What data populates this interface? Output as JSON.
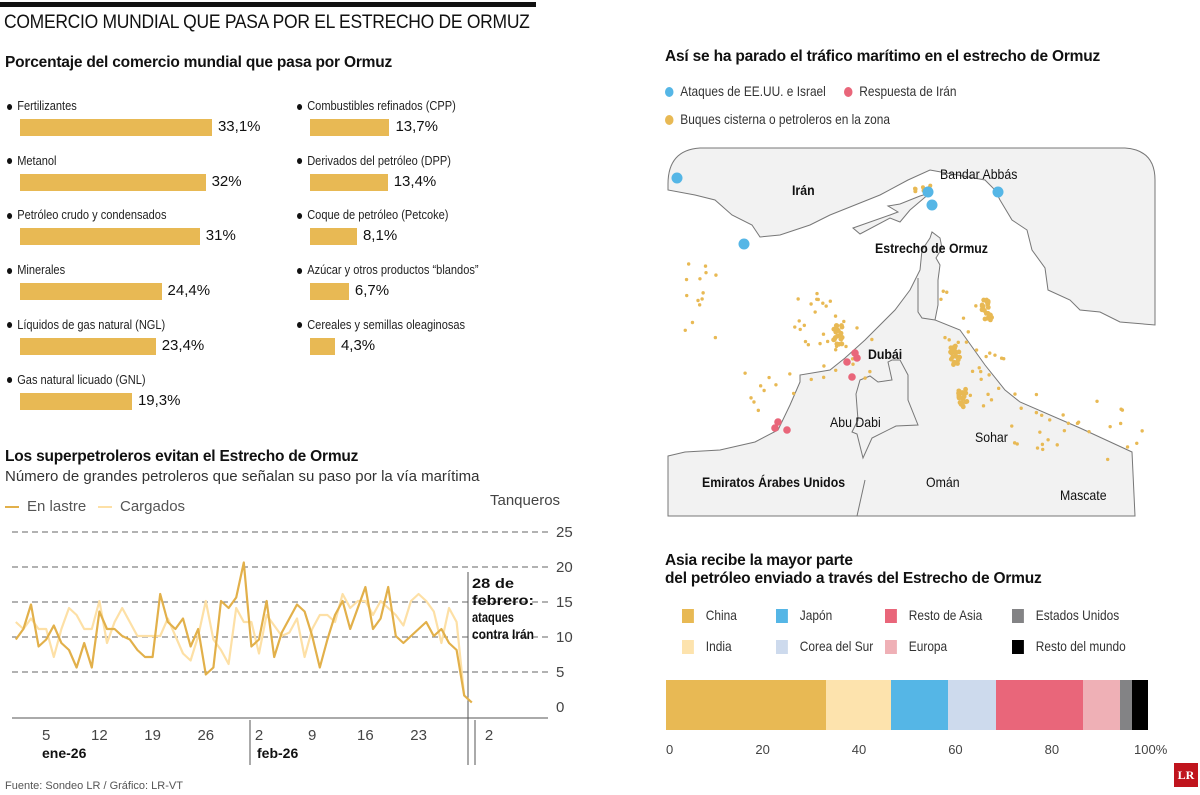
{
  "header": {
    "title": "COMERCIO MUNDIAL QUE PASA POR EL ESTRECHO DE ORMUZ"
  },
  "footer": {
    "source": "Fuente: Sondeo LR / Gráfico: LR-VT",
    "logo": "LR"
  },
  "colors": {
    "gold": "#e8b954",
    "light_gold": "#fde3ad",
    "blue": "#55b6e6",
    "pink": "#e9667a",
    "land": "#f2f2f2",
    "border": "#777777"
  },
  "chart_data": [
    {
      "type": "bar",
      "orientation": "horizontal",
      "title": "Porcentaje del comercio mundial que pasa por Ormuz",
      "categories": [
        "Fertilizantes",
        "Metanol",
        "Petróleo crudo y condensados",
        "Minerales",
        "Líquidos de gas natural (NGL)",
        "Gas natural licuado (GNL)",
        "Combustibles refinados (CPP)",
        "Derivados del petróleo (DPP)",
        "Coque de petróleo (Petcoke)",
        "Azúcar y otros productos “blandos”",
        "Cereales y semillas oleaginosas"
      ],
      "values": [
        33.1,
        32,
        31,
        24.4,
        23.4,
        19.3,
        13.7,
        13.4,
        8.1,
        6.7,
        4.3
      ],
      "labels": [
        "33,1%",
        "32%",
        "31%",
        "24,4%",
        "23,4%",
        "19,3%",
        "13,7%",
        "13,4%",
        "8,1%",
        "6,7%",
        "4,3%"
      ],
      "unit": "%"
    },
    {
      "type": "line",
      "title": "Los superpetroleros evitan el Estrecho de Ormuz",
      "subtitle": "Número de grandes petroleros que señalan su paso por la vía marítima",
      "ylabel": "Tanqueros",
      "ylim": [
        0,
        25
      ],
      "yticks": [
        0,
        5,
        10,
        15,
        20,
        25
      ],
      "grid": true,
      "x_start": "2026-01-01",
      "x_unit": "day",
      "xticks": [
        {
          "day": 5,
          "label": "5"
        },
        {
          "day": 12,
          "label": "12"
        },
        {
          "day": 19,
          "label": "19"
        },
        {
          "day": 26,
          "label": "26"
        },
        {
          "day": 33,
          "label": "2"
        },
        {
          "day": 40,
          "label": "9"
        },
        {
          "day": 47,
          "label": "16"
        },
        {
          "day": 54,
          "label": "23"
        },
        {
          "day": 61,
          "label": "2"
        }
      ],
      "month_labels": [
        {
          "day": 5,
          "label": "ene-26"
        },
        {
          "day": 33,
          "label": "feb-26"
        }
      ],
      "month_dividers": [
        32,
        61
      ],
      "annotation": {
        "day": 59.5,
        "text": "28 de febrero: ataques contra Irán"
      },
      "legend_position": "top-left",
      "series": [
        {
          "name": "En lastre",
          "color": "#e2b04a",
          "values": [
            9.5,
            11,
            14.5,
            8.5,
            9.5,
            11.5,
            9,
            8,
            5.5,
            9,
            5.5,
            13.5,
            11,
            11,
            10,
            9.5,
            8,
            7,
            7,
            16,
            12,
            11,
            12.5,
            8.5,
            11,
            4.5,
            5.5,
            15,
            14,
            15.5,
            20.5,
            8.5,
            9.5,
            15,
            7,
            10.5,
            12.5,
            14.5,
            13.5,
            10,
            5.5,
            9.5,
            13,
            15,
            11,
            14,
            17,
            11,
            12.5,
            17,
            10,
            9,
            10,
            11,
            12,
            10,
            11,
            9,
            8,
            1.5,
            0.5
          ]
        },
        {
          "name": "Cargados",
          "color": "#fde0a6",
          "values": [
            12,
            11,
            12.5,
            11,
            11,
            7,
            11,
            14,
            13,
            11,
            11,
            15,
            9,
            12,
            14,
            12,
            10,
            10,
            10,
            10,
            12.5,
            10,
            7.5,
            6.5,
            10,
            15,
            9.5,
            8,
            6,
            14,
            12,
            12,
            7.5,
            13,
            11.5,
            10,
            10.5,
            12.5,
            7,
            11,
            13,
            13,
            12,
            16,
            14,
            15,
            15,
            13,
            15,
            14,
            13,
            11.5,
            15,
            16,
            15,
            13.5,
            9,
            14,
            12,
            1.5,
            0.5
          ]
        }
      ]
    },
    {
      "type": "bar",
      "orientation": "horizontal-stacked",
      "title": "Asia recibe la mayor parte del petróleo enviado a través del Estrecho de Ormuz",
      "title_lines": [
        "Asia recibe la mayor parte",
        "del petróleo enviado a través del Estrecho de Ormuz"
      ],
      "xlim": [
        0,
        100
      ],
      "xticks": [
        "0",
        "20",
        "40",
        "60",
        "80",
        "100%"
      ],
      "legend_position": "top",
      "series": [
        {
          "name": "China",
          "value": 33.2,
          "color": "#e8b954"
        },
        {
          "name": "India",
          "value": 13.4,
          "color": "#fde3ad"
        },
        {
          "name": "Japón",
          "value": 11.9,
          "color": "#55b6e6"
        },
        {
          "name": "Corea del Sur",
          "value": 9.9,
          "color": "#cddaed"
        },
        {
          "name": "Resto de Asia",
          "value": 18.1,
          "color": "#e9667a"
        },
        {
          "name": "Europa",
          "value": 7.6,
          "color": "#efb0b6"
        },
        {
          "name": "Estados Unidos",
          "value": 2.6,
          "color": "#838385"
        },
        {
          "name": "Resto del mundo",
          "value": 3.3,
          "color": "#000000"
        }
      ]
    }
  ],
  "map": {
    "title": "Así se ha parado el tráfico marítimo en el estrecho de Ormuz",
    "legend": [
      {
        "label": "Ataques de EE.UU. e Israel",
        "color": "#55b6e6"
      },
      {
        "label": "Respuesta de Irán",
        "color": "#e9667a"
      },
      {
        "label": "Buques cisterna o petroleros en la zona",
        "color": "#e8b954"
      }
    ],
    "labels": {
      "iran": "Irán",
      "bandar": "Bandar Abbás",
      "strait": "Estrecho de Ormuz",
      "dubai": "Dubái",
      "abudhabi": "Abu Dabi",
      "sohar": "Sohar",
      "uae": "Emiratos Árabes Unidos",
      "oman": "Omán",
      "muscat": "Mascate"
    }
  }
}
